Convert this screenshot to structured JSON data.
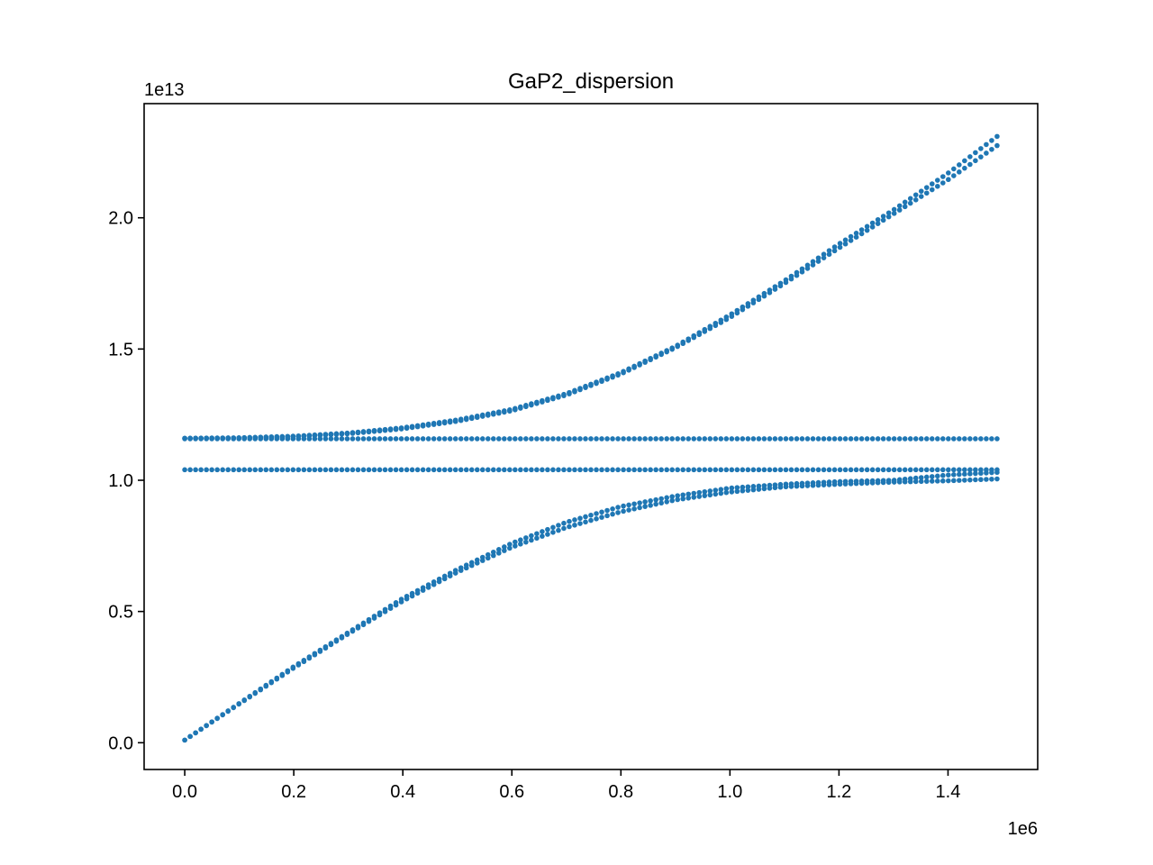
{
  "chart_data": {
    "type": "scatter",
    "title": "GaP2_dispersion",
    "xlabel": "",
    "ylabel": "",
    "x_offset_label": "1e6",
    "y_offset_label": "1e13",
    "xlim": [
      -74500,
      1564500
    ],
    "ylim": [
      -1020000000000.0,
      24350000000000.0
    ],
    "xticks": [
      0,
      200000,
      400000,
      600000,
      800000,
      1000000,
      1200000,
      1400000
    ],
    "xtick_labels": [
      "0.0",
      "0.2",
      "0.4",
      "0.6",
      "0.8",
      "1.0",
      "1.2",
      "1.4"
    ],
    "yticks": [
      0,
      5000000000000.0,
      10000000000000.0,
      15000000000000.0,
      20000000000000.0
    ],
    "ytick_labels": [
      "0.0",
      "0.5",
      "1.0",
      "1.5",
      "2.0"
    ],
    "grid": false,
    "color": "#1f77b4",
    "series": [
      {
        "x": [
          0,
          100000,
          200000,
          300000,
          400000,
          500000,
          600000,
          700000,
          800000,
          900000,
          1000000,
          1100000,
          1200000,
          1300000,
          1400000,
          1490000
        ],
        "y": [
          11600000000000.0,
          11620000000000.0,
          11680000000000.0,
          11800000000000.0,
          12000000000000.0,
          12300000000000.0,
          12700000000000.0,
          13300000000000.0,
          14100000000000.0,
          15100000000000.0,
          16300000000000.0,
          17600000000000.0,
          19000000000000.0,
          20300000000000.0,
          21700000000000.0,
          23100000000000.0
        ]
      },
      {
        "x": [
          0,
          100000,
          200000,
          300000,
          400000,
          500000,
          600000,
          700000,
          800000,
          900000,
          1000000,
          1100000,
          1200000,
          1300000,
          1400000,
          1490000
        ],
        "y": [
          11600000000000.0,
          11610000000000.0,
          11660000000000.0,
          11770000000000.0,
          11960000000000.0,
          12250000000000.0,
          12650000000000.0,
          13250000000000.0,
          14050000000000.0,
          15050000000000.0,
          16200000000000.0,
          17500000000000.0,
          18850000000000.0,
          20150000000000.0,
          21450000000000.0,
          22750000000000.0
        ]
      },
      {
        "x": [
          0,
          1490000
        ],
        "y": [
          11580000000000.0,
          11580000000000.0
        ]
      },
      {
        "x": [
          0,
          1490000
        ],
        "y": [
          10400000000000.0,
          10400000000000.0
        ]
      },
      {
        "x": [
          0,
          100000,
          200000,
          300000,
          400000,
          500000,
          600000,
          700000,
          800000,
          900000,
          1000000,
          1100000,
          1200000,
          1300000,
          1400000,
          1490000
        ],
        "y": [
          100000000000.0,
          1500000000000.0,
          2900000000000.0,
          4200000000000.0,
          5500000000000.0,
          6600000000000.0,
          7600000000000.0,
          8400000000000.0,
          9000000000000.0,
          9400000000000.0,
          9700000000000.0,
          9850000000000.0,
          9950000000000.0,
          10000000000000.0,
          10200000000000.0,
          10300000000000.0
        ]
      },
      {
        "x": [
          0,
          100000,
          200000,
          300000,
          400000,
          500000,
          600000,
          700000,
          800000,
          900000,
          1000000,
          1100000,
          1200000,
          1300000,
          1400000,
          1490000
        ],
        "y": [
          100000000000.0,
          1480000000000.0,
          2850000000000.0,
          4150000000000.0,
          5400000000000.0,
          6500000000000.0,
          7450000000000.0,
          8200000000000.0,
          8800000000000.0,
          9250000000000.0,
          9550000000000.0,
          9750000000000.0,
          9850000000000.0,
          9930000000000.0,
          9980000000000.0,
          10050000000000.0
        ]
      }
    ]
  }
}
